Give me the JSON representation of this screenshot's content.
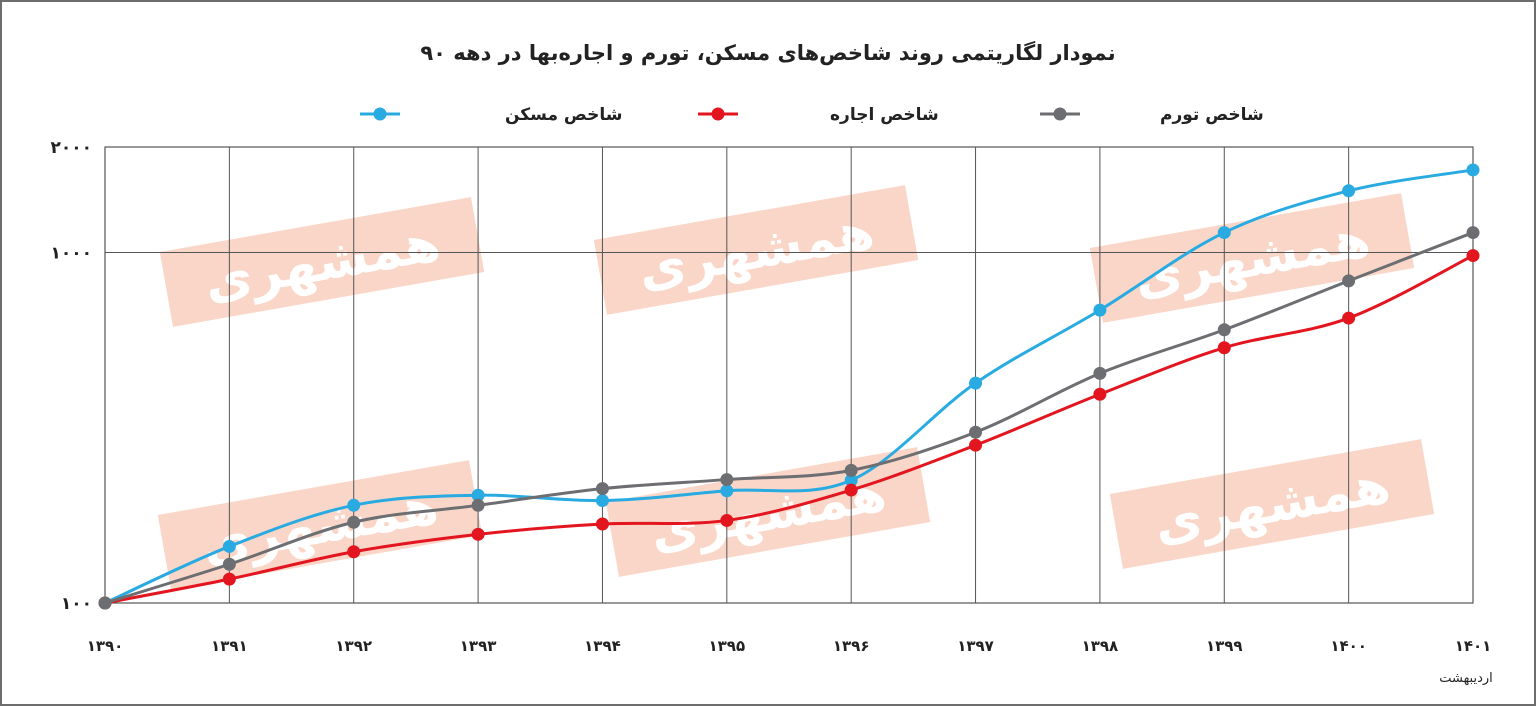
{
  "chart_data": {
    "type": "line",
    "title": "نمودار لگاریتمی روند شاخص‌های مسکن، تورم و اجاره‌بها در دهه ۹۰",
    "xlabel": "",
    "ylabel": "",
    "y_scale": "log",
    "ylim": [
      100,
      2000
    ],
    "y_ticks": [
      {
        "value": 100,
        "label": "۱۰۰"
      },
      {
        "value": 1000,
        "label": "۱۰۰۰"
      },
      {
        "value": 2000,
        "label": "۲۰۰۰"
      }
    ],
    "categories": [
      "۱۳۹۰",
      "۱۳۹۱",
      "۱۳۹۲",
      "۱۳۹۳",
      "۱۳۹۴",
      "۱۳۹۵",
      "۱۳۹۶",
      "۱۳۹۷",
      "۱۳۹۸",
      "۱۳۹۹",
      "۱۴۰۰",
      "۱۴۰۱"
    ],
    "last_category_note": "اردیبهشت",
    "grid": true,
    "legend_position": "top",
    "series": [
      {
        "name": "شاخص مسکن",
        "color": "#29abe2",
        "values": [
          100,
          145,
          190,
          203,
          196,
          209,
          224,
          424,
          685,
          1140,
          1500,
          1720
        ]
      },
      {
        "name": "شاخص اجاره",
        "color": "#e3151f",
        "values": [
          100,
          117,
          140,
          157,
          168,
          172,
          210,
          282,
          394,
          535,
          650,
          980
        ]
      },
      {
        "name": "شاخص تورم",
        "color": "#6d6e71",
        "values": [
          100,
          129,
          170,
          190,
          212,
          225,
          239,
          307,
          452,
          602,
          830,
          1140
        ]
      }
    ],
    "watermark": "همشهری"
  }
}
